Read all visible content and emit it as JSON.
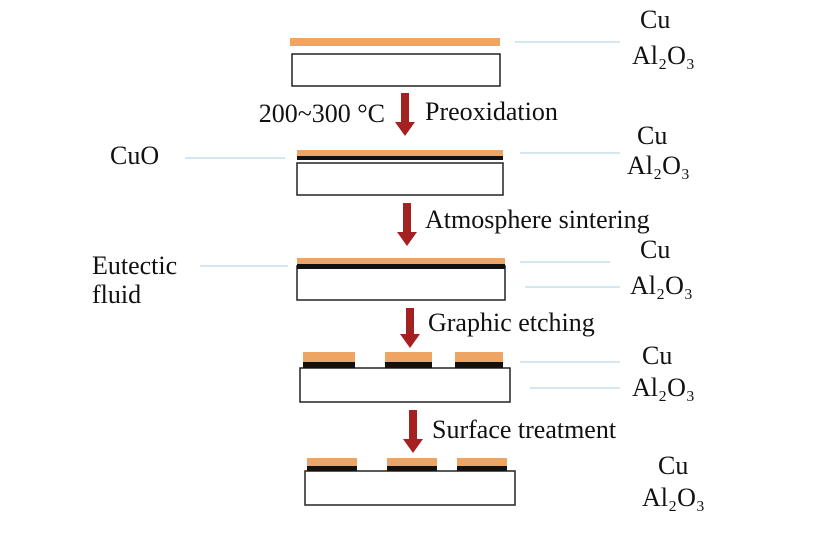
{
  "stages": [
    {
      "layers": [
        "Cu",
        "Al₂O₃"
      ]
    },
    {
      "layers": [
        "Cu",
        "Al₂O₃"
      ],
      "left_label": [
        "CuO"
      ]
    },
    {
      "layers": [
        "Cu",
        "Al₂O₃"
      ],
      "left_label": [
        "Eutectic",
        "fluid"
      ]
    },
    {
      "layers": [
        "Cu",
        "Al₂O₃"
      ]
    },
    {
      "layers": [
        "Cu",
        "Al₂O₃"
      ]
    }
  ],
  "steps": [
    {
      "condition": "200~300 °C",
      "label": "Preoxidation"
    },
    {
      "label": "Atmosphere sintering"
    },
    {
      "label": "Graphic etching"
    },
    {
      "label": "Surface treatment"
    }
  ]
}
